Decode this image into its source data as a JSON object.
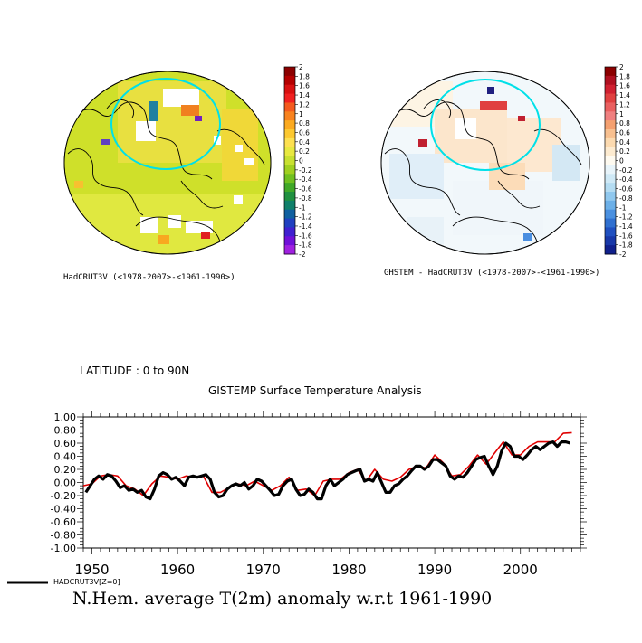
{
  "maps": {
    "left_caption": "HadCRUT3V (<1978-2007>-<1961-1990>)",
    "right_caption": "GHSTEM - HadCRUT3V (<1978-2007>-<1961-1990>)",
    "colorbar_ticks": [
      "2",
      "1.8",
      "1.6",
      "1.4",
      "1.2",
      "1",
      "0.8",
      "0.6",
      "0.4",
      "0.2",
      "0",
      "-0.2",
      "-0.4",
      "-0.6",
      "-0.8",
      "-1",
      "-1.2",
      "-1.4",
      "-1.6",
      "-1.8",
      "-2"
    ],
    "colorbar_colors": [
      "#8b0000",
      "#b40000",
      "#d81010",
      "#f02020",
      "#f45a1e",
      "#f8821e",
      "#fbaa20",
      "#fcc830",
      "#fde050",
      "#e8e840",
      "#c8e030",
      "#a0d020",
      "#70c020",
      "#40a828",
      "#209040",
      "#10806a",
      "#1060a0",
      "#2040c0",
      "#4020d0",
      "#7010d8",
      "#a020e0"
    ],
    "right_colorbar_colors": [
      "#8b0000",
      "#b01020",
      "#d02030",
      "#e04040",
      "#ea6060",
      "#f08080",
      "#f4a070",
      "#f8c090",
      "#fcdab0",
      "#fdebd0",
      "#fefaf0",
      "#e8f4fa",
      "#cfe9f6",
      "#b4dcf2",
      "#90c8ee",
      "#6cb0e8",
      "#4a90e0",
      "#3070d0",
      "#2050c0",
      "#1838a8",
      "#10208c"
    ]
  },
  "chart": {
    "lat_label": "LATITUDE : 0 to 90N",
    "subtitle": "GISTEMP Surface Temperature Analysis",
    "legend_label": "HADCRUT3V[Z=0]",
    "title": "N.Hem. average T(2m) anomaly w.r.t 1961-1990"
  },
  "chart_data": {
    "type": "line",
    "title": "N.Hem. average T(2m) anomaly w.r.t 1961-1990",
    "subtitle": "GISTEMP Surface Temperature Analysis",
    "xlim": [
      1949,
      2007
    ],
    "ylim": [
      -1.0,
      1.0
    ],
    "x_ticks": [
      1950,
      1960,
      1970,
      1980,
      1990,
      2000
    ],
    "y_ticks": [
      "1.00",
      "0.80",
      "0.60",
      "0.40",
      "0.20",
      "0.00",
      "-0.20",
      "-0.40",
      "-0.60",
      "-0.80",
      "-1.00"
    ],
    "series": [
      {
        "name": "GISTEMP",
        "color": "#e00000",
        "x": [
          1949.0,
          1950.0,
          1951.0,
          1952.0,
          1953.0,
          1954.0,
          1955.0,
          1956.0,
          1957.0,
          1958.0,
          1959.0,
          1960.0,
          1961.0,
          1962.0,
          1963.0,
          1964.0,
          1965.0,
          1966.0,
          1967.0,
          1968.0,
          1969.0,
          1970.0,
          1971.0,
          1972.0,
          1973.0,
          1974.0,
          1975.0,
          1976.0,
          1977.0,
          1978.0,
          1979.0,
          1980.0,
          1981.0,
          1982.0,
          1983.0,
          1984.0,
          1985.0,
          1986.0,
          1987.0,
          1988.0,
          1989.0,
          1990.0,
          1991.0,
          1992.0,
          1993.0,
          1994.0,
          1995.0,
          1996.0,
          1997.0,
          1998.0,
          1999.0,
          2000.0,
          2001.0,
          2002.0,
          2003.0,
          2004.0,
          2005.0,
          2006.0
        ],
        "y": [
          -0.05,
          -0.02,
          0.1,
          0.12,
          0.1,
          -0.05,
          -0.1,
          -0.2,
          -0.02,
          0.1,
          0.08,
          0.05,
          0.1,
          0.08,
          0.1,
          -0.15,
          -0.15,
          -0.08,
          -0.02,
          -0.05,
          0.02,
          -0.05,
          -0.12,
          -0.05,
          0.08,
          -0.12,
          -0.1,
          -0.2,
          0.02,
          0.05,
          0.05,
          0.15,
          0.2,
          0.02,
          0.2,
          0.05,
          0.02,
          0.08,
          0.2,
          0.25,
          0.22,
          0.42,
          0.3,
          0.1,
          0.12,
          0.25,
          0.42,
          0.28,
          0.45,
          0.62,
          0.42,
          0.42,
          0.55,
          0.62,
          0.62,
          0.62,
          0.75,
          0.76
        ]
      },
      {
        "name": "HADCRUT3V[Z=0]",
        "color": "#000000",
        "x": [
          1949.3,
          1949.8,
          1950.3,
          1950.8,
          1951.3,
          1951.8,
          1952.3,
          1952.8,
          1953.3,
          1953.8,
          1954.3,
          1954.8,
          1955.3,
          1955.8,
          1956.3,
          1956.8,
          1957.3,
          1957.8,
          1958.3,
          1958.8,
          1959.3,
          1959.8,
          1960.3,
          1960.8,
          1961.3,
          1961.8,
          1962.3,
          1962.8,
          1963.3,
          1963.8,
          1964.3,
          1964.8,
          1965.3,
          1965.8,
          1966.3,
          1966.8,
          1967.3,
          1967.8,
          1968.3,
          1968.8,
          1969.3,
          1969.8,
          1970.3,
          1970.8,
          1971.3,
          1971.8,
          1972.3,
          1972.8,
          1973.3,
          1973.8,
          1974.3,
          1974.8,
          1975.3,
          1975.8,
          1976.3,
          1976.8,
          1977.3,
          1977.8,
          1978.3,
          1978.8,
          1979.3,
          1979.8,
          1980.3,
          1980.8,
          1981.3,
          1981.8,
          1982.3,
          1982.8,
          1983.3,
          1983.8,
          1984.3,
          1984.8,
          1985.3,
          1985.8,
          1986.3,
          1986.8,
          1987.3,
          1987.8,
          1988.3,
          1988.8,
          1989.3,
          1989.8,
          1990.3,
          1990.8,
          1991.3,
          1991.8,
          1992.3,
          1992.8,
          1993.3,
          1993.8,
          1994.3,
          1994.8,
          1995.3,
          1995.8,
          1996.3,
          1996.8,
          1997.3,
          1997.8,
          1998.3,
          1998.8,
          1999.3,
          1999.8,
          2000.3,
          2000.8,
          2001.3,
          2001.8,
          2002.3,
          2002.8,
          2003.3,
          2003.8,
          2004.3,
          2004.8,
          2005.3,
          2005.8
        ],
        "y": [
          -0.15,
          -0.05,
          0.05,
          0.1,
          0.05,
          0.12,
          0.1,
          0.02,
          -0.08,
          -0.05,
          -0.12,
          -0.1,
          -0.15,
          -0.12,
          -0.22,
          -0.25,
          -0.1,
          0.1,
          0.15,
          0.12,
          0.05,
          0.08,
          0.02,
          -0.05,
          0.08,
          0.1,
          0.08,
          0.1,
          0.12,
          0.05,
          -0.15,
          -0.22,
          -0.2,
          -0.1,
          -0.05,
          -0.02,
          -0.05,
          0.0,
          -0.1,
          -0.05,
          0.05,
          0.02,
          -0.05,
          -0.12,
          -0.2,
          -0.18,
          -0.05,
          0.02,
          0.05,
          -0.1,
          -0.2,
          -0.18,
          -0.1,
          -0.15,
          -0.25,
          -0.25,
          -0.05,
          0.05,
          -0.05,
          0.0,
          0.05,
          0.12,
          0.15,
          0.18,
          0.2,
          0.02,
          0.05,
          0.02,
          0.15,
          0.0,
          -0.15,
          -0.15,
          -0.05,
          -0.02,
          0.05,
          0.1,
          0.18,
          0.25,
          0.25,
          0.2,
          0.25,
          0.35,
          0.35,
          0.3,
          0.25,
          0.1,
          0.05,
          0.1,
          0.08,
          0.15,
          0.25,
          0.35,
          0.38,
          0.4,
          0.25,
          0.12,
          0.25,
          0.48,
          0.6,
          0.55,
          0.4,
          0.4,
          0.35,
          0.42,
          0.5,
          0.55,
          0.5,
          0.55,
          0.6,
          0.62,
          0.55,
          0.62,
          0.62,
          0.6
        ]
      }
    ]
  }
}
